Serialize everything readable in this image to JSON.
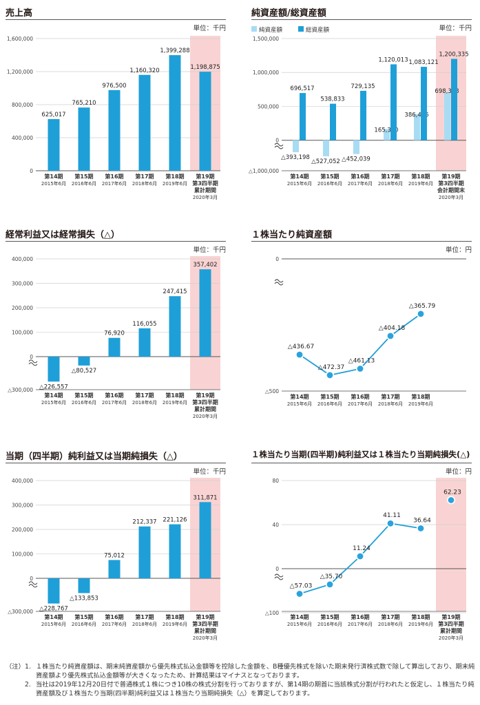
{
  "colors": {
    "bar": "#1f9fd8",
    "bar_light": "#a8dcf3",
    "highlight": "#f9d3d3",
    "line": "#1f9fd8",
    "marker_fill": "#2aa3dc"
  },
  "charts": [
    {
      "id": "sales",
      "title": "売上高",
      "unit": "単位：千円",
      "chart_data": {
        "type": "bar",
        "title": "売上高",
        "ylim": [
          0,
          1600000
        ],
        "yticks": [
          0,
          400000,
          800000,
          1200000,
          1600000
        ],
        "ytick_labels": [
          "0",
          "400,000",
          "800,000",
          "1,200,000",
          "1,600,000"
        ],
        "categories": [
          [
            "第14期",
            "2015年6月"
          ],
          [
            "第15期",
            "2016年6月"
          ],
          [
            "第16期",
            "2017年6月"
          ],
          [
            "第17期",
            "2018年6月"
          ],
          [
            "第18期",
            "2019年6月"
          ],
          [
            "第19期",
            "第3四半期",
            "累計期間",
            "2020年3月"
          ]
        ],
        "series": [
          {
            "name": "売上高",
            "values": [
              625017,
              765210,
              976500,
              1160320,
              1399288,
              1198875
            ],
            "labels": [
              "625,017",
              "765,210",
              "976,500",
              "1,160,320",
              "1,399,288",
              "1,198,875"
            ]
          }
        ]
      }
    },
    {
      "id": "assets",
      "title": "純資産額/総資産額",
      "unit": "単位：千円",
      "chart_data": {
        "type": "bar",
        "title": "純資産額/総資産額",
        "ylim": [
          -1000000,
          1500000
        ],
        "yticks": [
          -1000000,
          0,
          500000,
          1000000,
          1500000
        ],
        "ytick_labels": [
          "△1,000,000",
          "0",
          "500,000",
          "1,000,000",
          "1,500,000"
        ],
        "legend": [
          "純資産額",
          "総資産額"
        ],
        "categories": [
          [
            "第14期",
            "2015年6月"
          ],
          [
            "第15期",
            "2016年6月"
          ],
          [
            "第16期",
            "2017年6月"
          ],
          [
            "第17期",
            "2018年6月"
          ],
          [
            "第18期",
            "2019年6月"
          ],
          [
            "第19期",
            "第3四半期",
            "会計期間末",
            "2020年3月"
          ]
        ],
        "series": [
          {
            "name": "純資産額",
            "values": [
              -393198,
              -527052,
              -452039,
              165350,
              386476,
              698348
            ],
            "labels": [
              "△393,198",
              "△527,052",
              "△452,039",
              "165,350",
              "386,476",
              "698,348"
            ]
          },
          {
            "name": "総資産額",
            "values": [
              696517,
              538833,
              729135,
              1120013,
              1083121,
              1200335
            ],
            "labels": [
              "696,517",
              "538,833",
              "729,135",
              "1,120,013",
              "1,083,121",
              "1,200,335"
            ]
          }
        ]
      }
    },
    {
      "id": "ordinary",
      "title": "経常利益又は経常損失（△）",
      "unit": "単位：千円",
      "chart_data": {
        "type": "bar",
        "title": "経常利益又は経常損失（△）",
        "ylim": [
          -300000,
          400000
        ],
        "yticks": [
          -300000,
          0,
          100000,
          200000,
          300000,
          400000
        ],
        "ytick_labels": [
          "△300,000",
          "0",
          "100,000",
          "200,000",
          "300,000",
          "400,000"
        ],
        "categories": [
          [
            "第14期",
            "2015年6月"
          ],
          [
            "第15期",
            "2016年6月"
          ],
          [
            "第16期",
            "2017年6月"
          ],
          [
            "第17期",
            "2018年6月"
          ],
          [
            "第18期",
            "2019年6月"
          ],
          [
            "第19期",
            "第3四半期",
            "累計期間",
            "2020年3月"
          ]
        ],
        "series": [
          {
            "name": "経常利益",
            "values": [
              -226557,
              -80527,
              76920,
              116055,
              247415,
              357402
            ],
            "labels": [
              "△226,557",
              "△80,527",
              "76,920",
              "116,055",
              "247,415",
              "357,402"
            ]
          }
        ]
      }
    },
    {
      "id": "bps",
      "title": "１株当たり純資産額",
      "unit": "単位：円",
      "chart_data": {
        "type": "line",
        "title": "１株当たり純資産額",
        "ylim": [
          -500,
          0
        ],
        "yticks": [
          -500,
          0
        ],
        "ytick_labels": [
          "△500",
          "0"
        ],
        "categories": [
          [
            "第14期",
            "2015年6月"
          ],
          [
            "第15期",
            "2016年6月"
          ],
          [
            "第16期",
            "2017年6月"
          ],
          [
            "第17期",
            "2018年6月"
          ],
          [
            "第18期",
            "2019年6月"
          ]
        ],
        "series": [
          {
            "name": "１株当たり純資産額",
            "values": [
              -436.67,
              -472.37,
              -461.13,
              -404.18,
              -365.79
            ],
            "labels": [
              "△436.67",
              "△472.37",
              "△461.13",
              "△404.18",
              "△365.79"
            ]
          }
        ]
      }
    },
    {
      "id": "netincome",
      "title": "当期（四半期）純利益又は当期純損失（△）",
      "unit": "単位：千円",
      "chart_data": {
        "type": "bar",
        "title": "当期（四半期）純利益又は当期純損失（△）",
        "ylim": [
          -300000,
          400000
        ],
        "yticks": [
          -300000,
          0,
          100000,
          200000,
          300000,
          400000
        ],
        "ytick_labels": [
          "△300,000",
          "0",
          "100,000",
          "200,000",
          "300,000",
          "400,000"
        ],
        "categories": [
          [
            "第14期",
            "2015年6月"
          ],
          [
            "第15期",
            "2016年6月"
          ],
          [
            "第16期",
            "2017年6月"
          ],
          [
            "第17期",
            "2018年6月"
          ],
          [
            "第18期",
            "2019年6月"
          ],
          [
            "第19期",
            "第3四半期",
            "累計期間",
            "2020年3月"
          ]
        ],
        "series": [
          {
            "name": "当期純利益",
            "values": [
              -228767,
              -133853,
              75012,
              212337,
              221126,
              311871
            ],
            "labels": [
              "△228,767",
              "△133,853",
              "75,012",
              "212,337",
              "221,126",
              "311,871"
            ]
          }
        ]
      }
    },
    {
      "id": "eps",
      "title": "１株当たり当期(四半期)純利益又は１株当たり当期純損失(△)",
      "unit": "単位：円",
      "chart_data": {
        "type": "line",
        "title": "１株当たり当期(四半期)純利益又は１株当たり当期純損失(△)",
        "ylim": [
          -100,
          80
        ],
        "yticks": [
          -100,
          0,
          40,
          80
        ],
        "ytick_labels": [
          "△100",
          "0",
          "40",
          "80"
        ],
        "categories": [
          [
            "第14期",
            "2015年6月"
          ],
          [
            "第15期",
            "2016年6月"
          ],
          [
            "第16期",
            "2017年6月"
          ],
          [
            "第17期",
            "2018年6月"
          ],
          [
            "第18期",
            "2019年6月"
          ],
          [
            "第19期",
            "第3四半期",
            "累計期間",
            "2020年3月"
          ]
        ],
        "series": [
          {
            "name": "１株当たり当期純利益",
            "values": [
              -57.03,
              -35.7,
              11.24,
              41.11,
              36.64,
              62.23
            ],
            "labels": [
              "△57.03",
              "△35.70",
              "11.24",
              "41.11",
              "36.64",
              "62.23"
            ]
          }
        ]
      }
    }
  ],
  "notes": {
    "label": "（注）",
    "items": [
      {
        "num": "1.",
        "text": "１株当たり純資産額は、期末純資産額から優先株式払込金額等を控除した金額を、B種優先株式を除いた期末発行済株式数で除して算出しており、期末純資産額より優先株式払込金額等が大きくなったため、計算結果はマイナスとなっております。"
      },
      {
        "num": "2.",
        "text": "当社は2019年12月20日付で普通株式１株につき10株の株式分割を行っておりますが、第14期の期首に当該株式分割が行われたと仮定し、１株当たり純資産額及び１株当たり当期(四半期)純利益又は１株当たり当期純損失（△）を算定しております。"
      }
    ]
  }
}
